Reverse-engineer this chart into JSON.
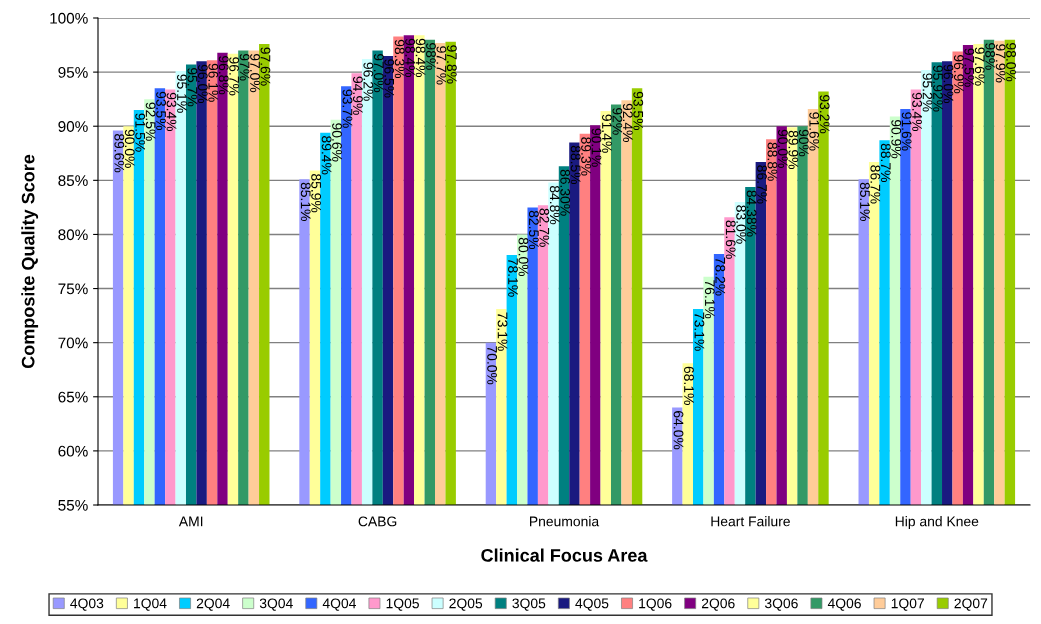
{
  "chart_data": {
    "type": "bar",
    "xlabel": "Clinical Focus Area",
    "ylabel": "Composite Quality Score",
    "categories": [
      "AMI",
      "CABG",
      "Pneumonia",
      "Heart Failure",
      "Hip and Knee"
    ],
    "ylim": [
      55,
      100
    ],
    "yticks": [
      {
        "value": 55,
        "label": "55%"
      },
      {
        "value": 60,
        "label": "60%"
      },
      {
        "value": 65,
        "label": "65%"
      },
      {
        "value": 70,
        "label": "70%"
      },
      {
        "value": 75,
        "label": "75%"
      },
      {
        "value": 80,
        "label": "80%"
      },
      {
        "value": 85,
        "label": "85%"
      },
      {
        "value": 90,
        "label": "90%"
      },
      {
        "value": 95,
        "label": "95%"
      },
      {
        "value": 100,
        "label": "100%"
      }
    ],
    "grid": "y",
    "legend": "bottom",
    "series": [
      {
        "name": "4Q03",
        "color": "#9999ff",
        "values": [
          89.6,
          85.1,
          70.0,
          64.0,
          85.1
        ],
        "value_labels": [
          "89.6%",
          "85.1%",
          "70.0%",
          "64.0%",
          "85.1%"
        ]
      },
      {
        "name": "1Q04",
        "color": "#ffff99",
        "values": [
          90.0,
          85.9,
          73.1,
          68.1,
          86.7
        ],
        "value_labels": [
          "90.0%",
          "85.9%",
          "73.1%",
          "68.1%",
          "86.7%"
        ]
      },
      {
        "name": "2Q04",
        "color": "#00ccff",
        "values": [
          91.5,
          89.4,
          78.1,
          73.1,
          88.7
        ],
        "value_labels": [
          "91.5%",
          "89.4%",
          "78.1%",
          "73.1%",
          "88.7%"
        ]
      },
      {
        "name": "3Q04",
        "color": "#ccffcc",
        "values": [
          92.5,
          90.6,
          80.0,
          76.1,
          90.9
        ],
        "value_labels": [
          "92.5%",
          "90.6%",
          "80.0%",
          "76.1%",
          "90.9%"
        ]
      },
      {
        "name": "4Q04",
        "color": "#3366ff",
        "values": [
          93.5,
          93.7,
          82.5,
          78.2,
          91.6
        ],
        "value_labels": [
          "93.5%",
          "93.7%",
          "82.5%",
          "78.2%",
          "91.6%"
        ]
      },
      {
        "name": "1Q05",
        "color": "#ff99cc",
        "values": [
          93.4,
          94.9,
          82.7,
          81.6,
          93.4
        ],
        "value_labels": [
          "93.4%",
          "94.9%",
          "82.7%",
          "81.6%",
          "93.4%"
        ]
      },
      {
        "name": "2Q05",
        "color": "#ccffff",
        "values": [
          95.1,
          96.2,
          84.8,
          83.0,
          95.2
        ],
        "value_labels": [
          "95.1%",
          "96.2%",
          "84.8%",
          "83.0%",
          "95.2%"
        ]
      },
      {
        "name": "3Q05",
        "color": "#008080",
        "values": [
          95.7,
          97.0,
          86.3,
          84.38,
          95.92
        ],
        "value_labels": [
          "95.7%",
          "97.0%",
          "86.30%",
          "84.38%",
          "95.92%"
        ]
      },
      {
        "name": "4Q05",
        "color": "#1a1a80",
        "values": [
          96.0,
          96.5,
          88.5,
          86.7,
          96.0
        ],
        "value_labels": [
          "96.0%",
          "96.5%",
          "88.5%",
          "86.7%",
          "96.0%"
        ]
      },
      {
        "name": "1Q06",
        "color": "#ff8080",
        "values": [
          96.1,
          98.3,
          89.3,
          88.8,
          96.9
        ],
        "value_labels": [
          "96.1%",
          "98.3%",
          "89.3%",
          "88.8%",
          "96.9%"
        ]
      },
      {
        "name": "2Q06",
        "color": "#800080",
        "values": [
          96.8,
          98.4,
          90.1,
          90.0,
          97.5
        ],
        "value_labels": [
          "96.8%",
          "98.4%",
          "90.1%",
          "90.0%",
          "97.5%"
        ]
      },
      {
        "name": "3Q06",
        "color": "#ffff99",
        "values": [
          96.7,
          98.4,
          91.4,
          89.9,
          97.6
        ],
        "value_labels": [
          "96.7%",
          "98.4%",
          "91.4%",
          "89.9%",
          "97.6%"
        ]
      },
      {
        "name": "4Q06",
        "color": "#339966",
        "values": [
          97,
          98,
          92,
          90,
          98
        ],
        "value_labels": [
          "97%",
          "98%",
          "92%",
          "90%",
          "98%"
        ]
      },
      {
        "name": "1Q07",
        "color": "#ffcc99",
        "values": [
          97.0,
          97.7,
          92.4,
          91.6,
          97.9
        ],
        "value_labels": [
          "97.0%",
          "97.7%",
          "92.4%",
          "91.6%",
          "97.9%"
        ]
      },
      {
        "name": "2Q07",
        "color": "#99cc00",
        "values": [
          97.6,
          97.8,
          93.5,
          93.2,
          98.0
        ],
        "value_labels": [
          "97.6%",
          "97.8%",
          "93.5%",
          "93.2%",
          "98.0%"
        ]
      }
    ]
  }
}
